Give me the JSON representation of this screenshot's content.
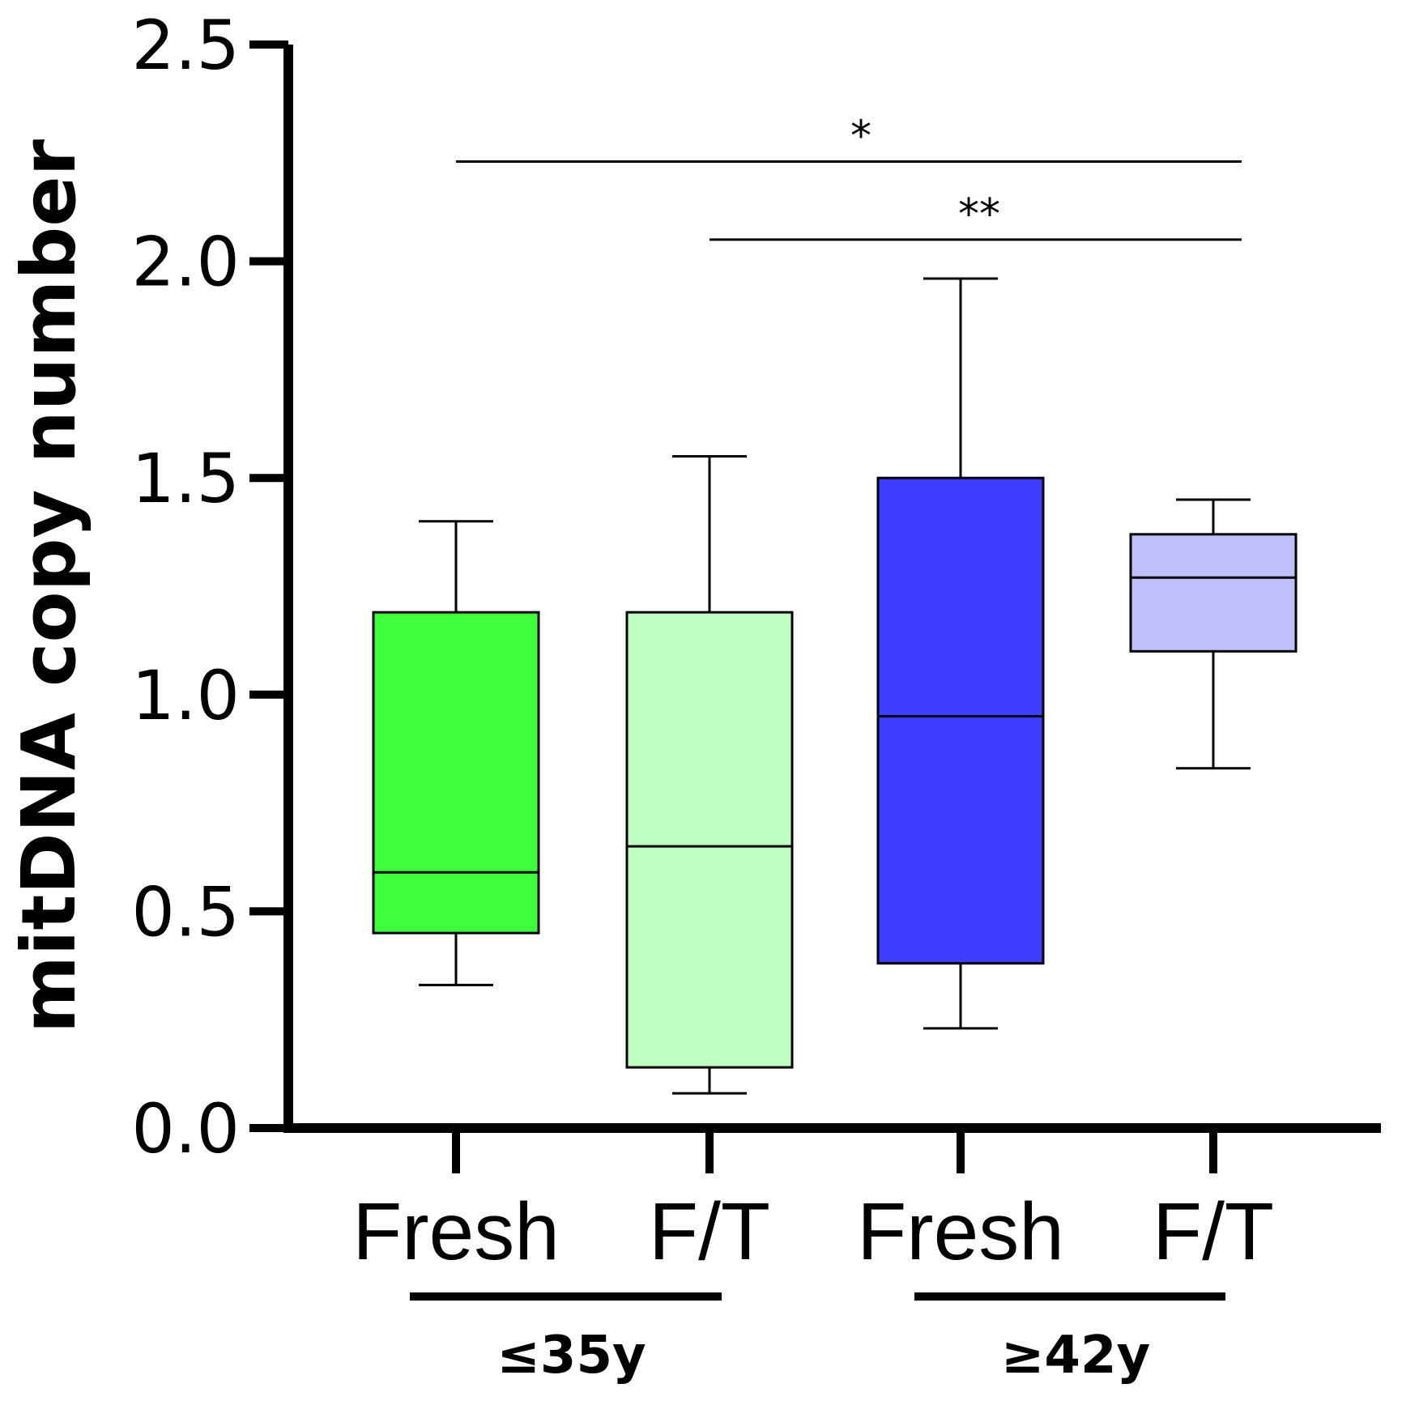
{
  "chart_data": {
    "type": "box",
    "title": "",
    "xlabel": "",
    "ylabel": "mitDNA copy number",
    "ylim": [
      0,
      2.5
    ],
    "yticks": [
      "0.0",
      "0.5",
      "1.0",
      "1.5",
      "2.0",
      "2.5"
    ],
    "grid": false,
    "categories": [
      "Fresh",
      "F/T",
      "Fresh",
      "F/T"
    ],
    "groups": [
      {
        "label": "≤35y",
        "categories": [
          0,
          1
        ]
      },
      {
        "label": "≥42y",
        "categories": [
          2,
          3
        ]
      }
    ],
    "boxes": [
      {
        "category": "Fresh",
        "group": "≤35y",
        "min": 0.33,
        "q1": 0.45,
        "median": 0.59,
        "q3": 1.19,
        "max": 1.4,
        "color": "#3dff3d"
      },
      {
        "category": "F/T",
        "group": "≤35y",
        "min": 0.08,
        "q1": 0.14,
        "median": 0.65,
        "q3": 1.19,
        "max": 1.55,
        "color": "#bfffbf"
      },
      {
        "category": "Fresh",
        "group": "≥42y",
        "min": 0.23,
        "q1": 0.38,
        "median": 0.95,
        "q3": 1.5,
        "max": 1.96,
        "color": "#3d3dff"
      },
      {
        "category": "F/T",
        "group": "≥42y",
        "min": 0.83,
        "q1": 1.1,
        "median": 1.27,
        "q3": 1.37,
        "max": 1.45,
        "color": "#bfbffc"
      }
    ],
    "significance": [
      {
        "from": 0,
        "to": 3,
        "y": 2.23,
        "label": "*"
      },
      {
        "from": 1,
        "to": 3,
        "y": 2.05,
        "label": "**"
      }
    ]
  }
}
